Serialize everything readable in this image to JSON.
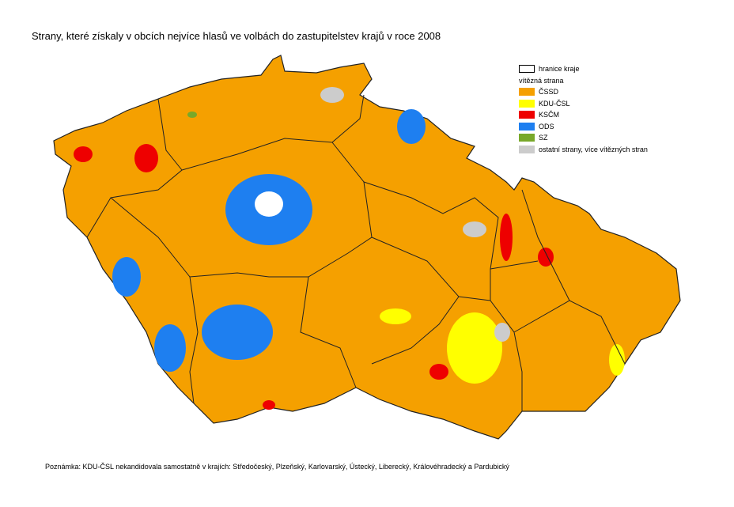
{
  "title": "Strany, které získaly v obcích nejvíce hlasů ve volbách do zastupitelstev krajů v roce 2008",
  "legend": {
    "border": "hranice kraje",
    "heading": "vítězná strana",
    "items": [
      {
        "label": "ČSSD",
        "color": "#f5a000"
      },
      {
        "label": "KDU-ČSL",
        "color": "#ffff00"
      },
      {
        "label": "KSČM",
        "color": "#ee0000"
      },
      {
        "label": "ODS",
        "color": "#1e7ff0"
      },
      {
        "label": "SZ",
        "color": "#78a82a"
      },
      {
        "label": "ostatní strany, více vítězných stran",
        "color": "#cccccc"
      }
    ]
  },
  "note": "Poznámka: KDU-ČSL nekandidovala samostatně v krajích: Středočeský, Plzeňský, Karlovarský, Ústecký, Liberecký, Královéhradecký a Pardubický"
}
